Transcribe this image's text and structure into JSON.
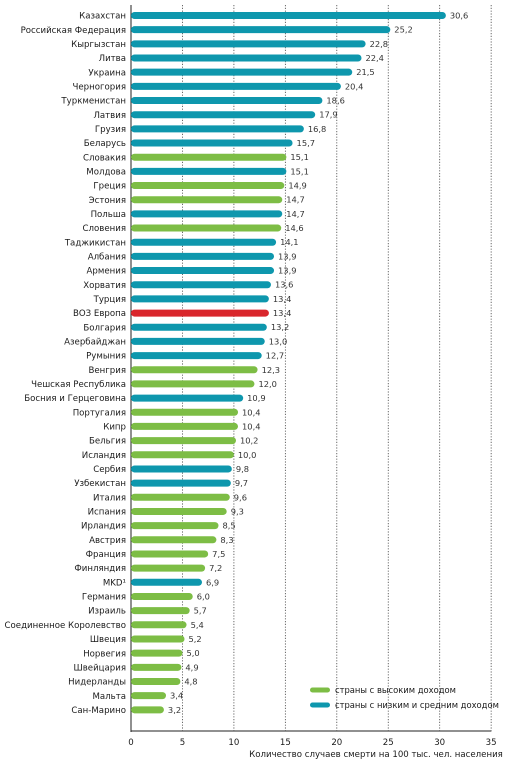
{
  "chart_data": {
    "type": "bar",
    "orientation": "horizontal",
    "xlabel": "Количество случаев смерти на 100 тыс. чел. населения",
    "xlim": [
      0,
      35
    ],
    "xticks": [
      0,
      5,
      10,
      15,
      20,
      25,
      30,
      35
    ],
    "grid": "vertical-dotted",
    "legend_position": "bottom-right",
    "groups": {
      "high": {
        "label": "страны с высоким доходом",
        "color": "#7dbd45"
      },
      "low": {
        "label": "страны с низким и средним доходом",
        "color": "#0e97ad"
      },
      "who": {
        "label": "",
        "color": "#d9262c"
      }
    },
    "bars": [
      {
        "label": "Казахстан",
        "value": 30.6,
        "value_label": "30,6",
        "group": "low"
      },
      {
        "label": "Российская Федерация",
        "value": 25.2,
        "value_label": "25,2",
        "group": "low"
      },
      {
        "label": "Кыргызстан",
        "value": 22.8,
        "value_label": "22,8",
        "group": "low"
      },
      {
        "label": "Литва",
        "value": 22.4,
        "value_label": "22,4",
        "group": "low"
      },
      {
        "label": "Украина",
        "value": 21.5,
        "value_label": "21,5",
        "group": "low"
      },
      {
        "label": "Черногория",
        "value": 20.4,
        "value_label": "20,4",
        "group": "low"
      },
      {
        "label": "Туркменистан",
        "value": 18.6,
        "value_label": "18,6",
        "group": "low"
      },
      {
        "label": "Латвия",
        "value": 17.9,
        "value_label": "17,9",
        "group": "low"
      },
      {
        "label": "Грузия",
        "value": 16.8,
        "value_label": "16,8",
        "group": "low"
      },
      {
        "label": "Беларусь",
        "value": 15.7,
        "value_label": "15,7",
        "group": "low"
      },
      {
        "label": "Словакия",
        "value": 15.1,
        "value_label": "15,1",
        "group": "high"
      },
      {
        "label": "Молдова",
        "value": 15.1,
        "value_label": "15,1",
        "group": "low"
      },
      {
        "label": "Греция",
        "value": 14.9,
        "value_label": "14,9",
        "group": "high"
      },
      {
        "label": "Эстония",
        "value": 14.7,
        "value_label": "14,7",
        "group": "high"
      },
      {
        "label": "Польша",
        "value": 14.7,
        "value_label": "14,7",
        "group": "low"
      },
      {
        "label": "Словения",
        "value": 14.6,
        "value_label": "14,6",
        "group": "high"
      },
      {
        "label": "Таджикистан",
        "value": 14.1,
        "value_label": "14,1",
        "group": "low"
      },
      {
        "label": "Албания",
        "value": 13.9,
        "value_label": "13,9",
        "group": "low"
      },
      {
        "label": "Армения",
        "value": 13.9,
        "value_label": "13,9",
        "group": "low"
      },
      {
        "label": "Хорватия",
        "value": 13.6,
        "value_label": "13,6",
        "group": "low"
      },
      {
        "label": "Турция",
        "value": 13.4,
        "value_label": "13,4",
        "group": "low"
      },
      {
        "label": "ВОЗ Европа",
        "value": 13.4,
        "value_label": "13,4",
        "group": "who"
      },
      {
        "label": "Болгария",
        "value": 13.2,
        "value_label": "13,2",
        "group": "low"
      },
      {
        "label": "Азербайджан",
        "value": 13.0,
        "value_label": "13,0",
        "group": "low"
      },
      {
        "label": "Румыния",
        "value": 12.7,
        "value_label": "12,7",
        "group": "low"
      },
      {
        "label": "Венгрия",
        "value": 12.3,
        "value_label": "12,3",
        "group": "high"
      },
      {
        "label": "Чешская Республика",
        "value": 12.0,
        "value_label": "12,0",
        "group": "high"
      },
      {
        "label": "Босния и Герцеговина",
        "value": 10.9,
        "value_label": "10,9",
        "group": "low"
      },
      {
        "label": "Португалия",
        "value": 10.4,
        "value_label": "10,4",
        "group": "high"
      },
      {
        "label": "Кипр",
        "value": 10.4,
        "value_label": "10,4",
        "group": "high"
      },
      {
        "label": "Бельгия",
        "value": 10.2,
        "value_label": "10,2",
        "group": "high"
      },
      {
        "label": "Исландия",
        "value": 10.0,
        "value_label": "10,0",
        "group": "high"
      },
      {
        "label": "Сербия",
        "value": 9.8,
        "value_label": "9,8",
        "group": "low"
      },
      {
        "label": "Узбекистан",
        "value": 9.7,
        "value_label": "9,7",
        "group": "low"
      },
      {
        "label": "Италия",
        "value": 9.6,
        "value_label": "9,6",
        "group": "high"
      },
      {
        "label": "Испания",
        "value": 9.3,
        "value_label": "9,3",
        "group": "high"
      },
      {
        "label": "Ирландия",
        "value": 8.5,
        "value_label": "8,5",
        "group": "high"
      },
      {
        "label": "Австрия",
        "value": 8.3,
        "value_label": "8,3",
        "group": "high"
      },
      {
        "label": "Франция",
        "value": 7.5,
        "value_label": "7,5",
        "group": "high"
      },
      {
        "label": "Финляндия",
        "value": 7.2,
        "value_label": "7,2",
        "group": "high"
      },
      {
        "label": "MKD¹",
        "value": 6.9,
        "value_label": "6,9",
        "group": "low"
      },
      {
        "label": "Германия",
        "value": 6.0,
        "value_label": "6,0",
        "group": "high"
      },
      {
        "label": "Израиль",
        "value": 5.7,
        "value_label": "5,7",
        "group": "high"
      },
      {
        "label": "Соединенное Королевство",
        "value": 5.4,
        "value_label": "5,4",
        "group": "high"
      },
      {
        "label": "Швеция",
        "value": 5.2,
        "value_label": "5,2",
        "group": "high"
      },
      {
        "label": "Норвегия",
        "value": 5.0,
        "value_label": "5,0",
        "group": "high"
      },
      {
        "label": "Швейцария",
        "value": 4.9,
        "value_label": "4,9",
        "group": "high"
      },
      {
        "label": "Нидерланды",
        "value": 4.8,
        "value_label": "4,8",
        "group": "high"
      },
      {
        "label": "Мальта",
        "value": 3.4,
        "value_label": "3,4",
        "group": "high"
      },
      {
        "label": "Сан-Марино",
        "value": 3.2,
        "value_label": "3,2",
        "group": "high"
      }
    ],
    "legend": [
      {
        "label": "страны с высоким доходом",
        "group": "high"
      },
      {
        "label": "страны с низким и средним доходом",
        "group": "low"
      }
    ]
  }
}
